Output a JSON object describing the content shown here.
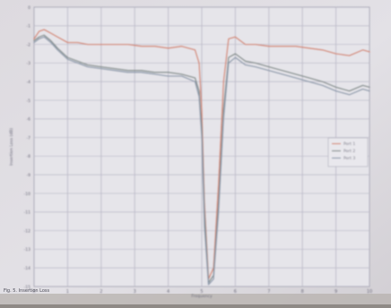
{
  "chart_data": {
    "type": "line",
    "title": "",
    "xlabel": "Frequency",
    "ylabel": "Insertion Loss (dB)",
    "caption": "Fig. 5. Insertion Loss",
    "grid": true,
    "legend_position": "right",
    "xlim": [
      0,
      10
    ],
    "ylim": [
      -15,
      0
    ],
    "x_ticks": [
      "0",
      "1",
      "2",
      "3",
      "4",
      "5",
      "6",
      "7",
      "8",
      "9",
      "10"
    ],
    "y_ticks": [
      "0",
      "-1",
      "-2",
      "-3",
      "-4",
      "-5",
      "-6",
      "-7",
      "-8",
      "-9",
      "-10",
      "-11",
      "-12",
      "-13",
      "-14",
      "-15"
    ],
    "series": [
      {
        "name": "Port 1",
        "color": "#d4826a",
        "x": [
          0.0,
          0.15,
          0.3,
          0.5,
          0.7,
          1.0,
          1.3,
          1.6,
          2.0,
          2.4,
          2.8,
          3.2,
          3.6,
          4.0,
          4.4,
          4.8,
          4.92,
          5.0,
          5.08,
          5.2,
          5.35,
          5.5,
          5.65,
          5.8,
          6.0,
          6.3,
          6.6,
          7.0,
          7.4,
          7.8,
          8.2,
          8.6,
          9.0,
          9.4,
          9.8,
          10.0
        ],
        "values": [
          -1.7,
          -1.3,
          -1.2,
          -1.4,
          -1.6,
          -1.9,
          -1.9,
          -2.0,
          -2.0,
          -2.0,
          -2.0,
          -2.1,
          -2.1,
          -2.2,
          -2.1,
          -2.3,
          -3.0,
          -5.5,
          -10.5,
          -14.6,
          -14.0,
          -9.5,
          -4.0,
          -1.7,
          -1.6,
          -2.0,
          -2.0,
          -2.1,
          -2.1,
          -2.1,
          -2.2,
          -2.3,
          -2.5,
          -2.6,
          -2.3,
          -2.4
        ]
      },
      {
        "name": "Port 2",
        "color": "#7f8a88",
        "x": [
          0.0,
          0.15,
          0.3,
          0.5,
          0.7,
          1.0,
          1.3,
          1.6,
          2.0,
          2.4,
          2.8,
          3.2,
          3.6,
          4.0,
          4.4,
          4.8,
          4.92,
          5.0,
          5.08,
          5.2,
          5.35,
          5.5,
          5.65,
          5.8,
          6.0,
          6.3,
          6.6,
          7.0,
          7.4,
          7.8,
          8.2,
          8.6,
          9.0,
          9.4,
          9.8,
          10.0
        ],
        "values": [
          -1.8,
          -1.6,
          -1.5,
          -1.8,
          -2.2,
          -2.7,
          -2.9,
          -3.1,
          -3.2,
          -3.3,
          -3.4,
          -3.4,
          -3.5,
          -3.5,
          -3.6,
          -3.8,
          -4.5,
          -6.5,
          -11.0,
          -14.8,
          -14.4,
          -10.5,
          -5.5,
          -2.7,
          -2.5,
          -2.9,
          -3.0,
          -3.2,
          -3.4,
          -3.6,
          -3.8,
          -4.0,
          -4.3,
          -4.5,
          -4.2,
          -4.3
        ]
      },
      {
        "name": "Port 3",
        "color": "#8a98aa",
        "x": [
          0.0,
          0.15,
          0.3,
          0.5,
          0.7,
          1.0,
          1.3,
          1.6,
          2.0,
          2.4,
          2.8,
          3.2,
          3.6,
          4.0,
          4.4,
          4.8,
          4.92,
          5.0,
          5.08,
          5.2,
          5.35,
          5.5,
          5.65,
          5.8,
          6.0,
          6.3,
          6.6,
          7.0,
          7.4,
          7.8,
          8.2,
          8.6,
          9.0,
          9.4,
          9.8,
          10.0
        ],
        "values": [
          -1.9,
          -1.7,
          -1.6,
          -1.9,
          -2.3,
          -2.8,
          -3.0,
          -3.2,
          -3.3,
          -3.4,
          -3.5,
          -3.5,
          -3.6,
          -3.7,
          -3.7,
          -4.0,
          -4.8,
          -7.0,
          -11.8,
          -14.9,
          -14.6,
          -11.0,
          -6.0,
          -3.0,
          -2.7,
          -3.1,
          -3.2,
          -3.4,
          -3.6,
          -3.8,
          -4.0,
          -4.2,
          -4.5,
          -4.7,
          -4.4,
          -4.5
        ]
      }
    ]
  }
}
